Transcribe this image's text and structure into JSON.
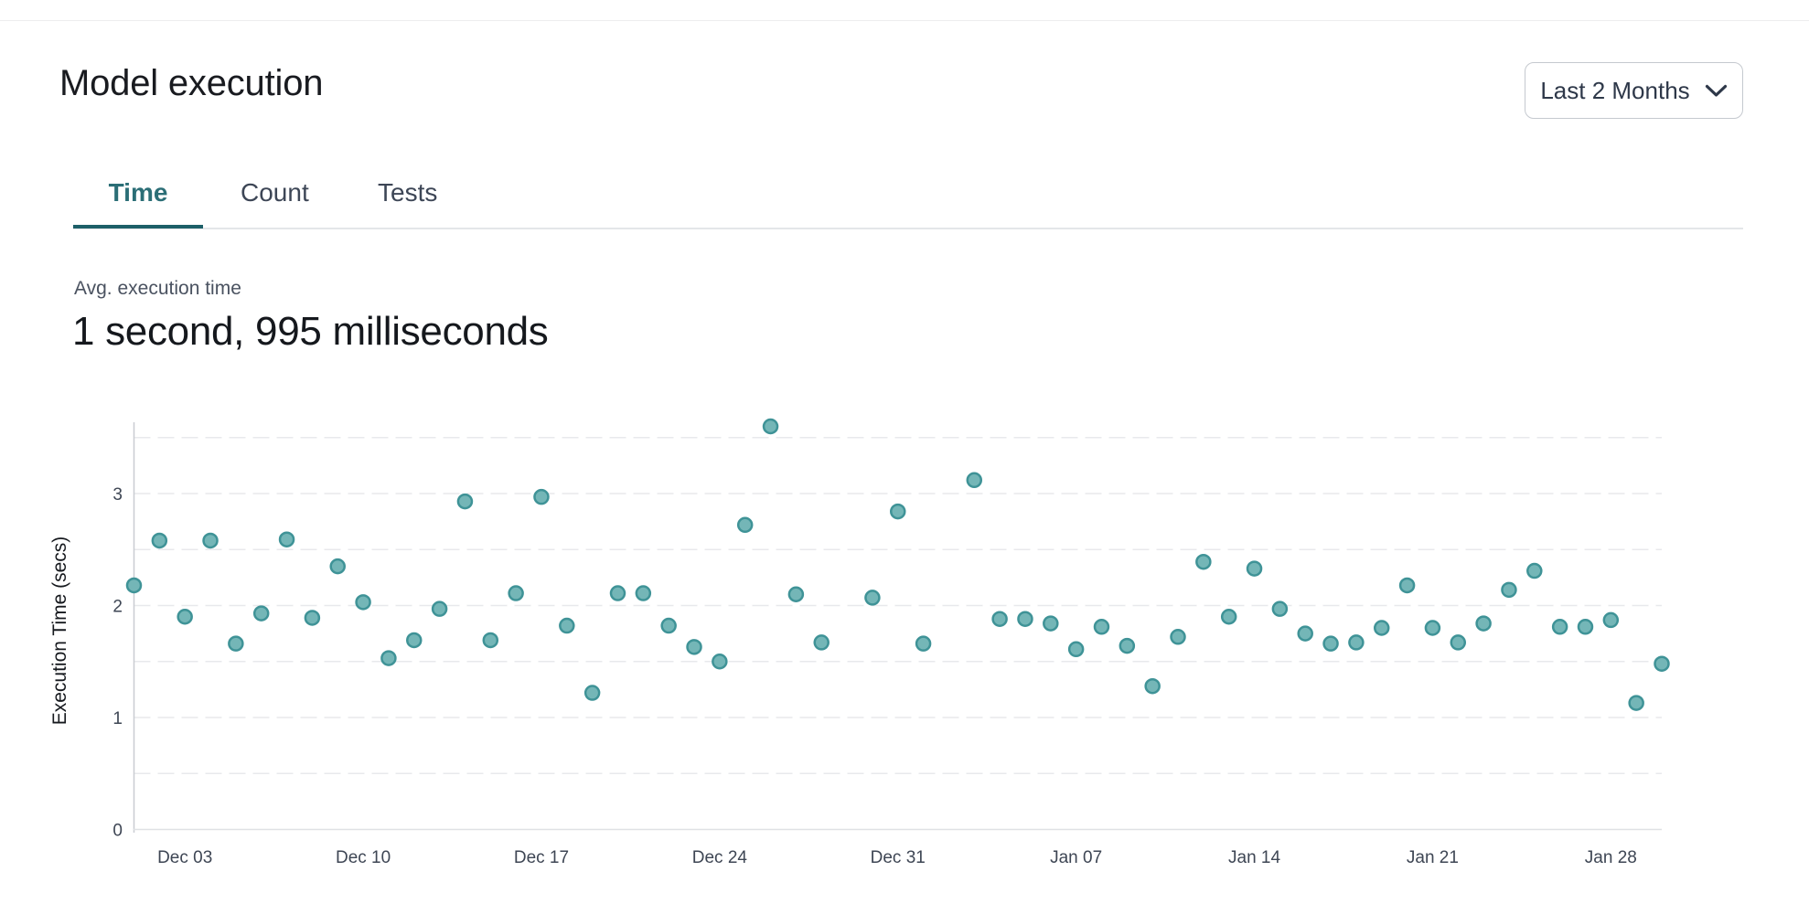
{
  "header": {
    "title": "Model execution",
    "range_selector": {
      "label": "Last 2 Months"
    }
  },
  "tabs": [
    {
      "label": "Time",
      "active": true
    },
    {
      "label": "Count",
      "active": false
    },
    {
      "label": "Tests",
      "active": false
    }
  ],
  "metric": {
    "label": "Avg. execution time",
    "value": "1 second, 995 milliseconds"
  },
  "colors": {
    "active_tab_text": "#2b6e76",
    "active_tab_underline": "#1d5f68",
    "inactive_tab_text": "#3d4656",
    "point_fill": "#74b6b7",
    "point_stroke": "#3f9397",
    "gridline": "#e8e9ec",
    "y_axis_line": "#c9ccd1",
    "x_axis_line": "#dfe1e5",
    "tick_label": "#3e4654",
    "axis_title": "#16191e"
  },
  "chart_data": {
    "type": "scatter",
    "title": "",
    "xlabel": "",
    "ylabel": "Execution Time (secs)",
    "ylim": [
      0,
      3.66
    ],
    "y_ticks": [
      0,
      1,
      2,
      3
    ],
    "gridline_step": 0.5,
    "grid": "dashed horizontal lines every 0.5 sec",
    "legend": "none",
    "x_ticks": [
      "Dec 03",
      "Dec 10",
      "Dec 17",
      "Dec 24",
      "Dec 31",
      "Jan 07",
      "Jan 14",
      "Jan 21",
      "Jan 28"
    ],
    "points": [
      {
        "date": "Dec 01",
        "value": 2.18
      },
      {
        "date": "Dec 02",
        "value": 2.58
      },
      {
        "date": "Dec 03",
        "value": 1.9
      },
      {
        "date": "Dec 04",
        "value": 2.58
      },
      {
        "date": "Dec 05",
        "value": 1.66
      },
      {
        "date": "Dec 06",
        "value": 1.93
      },
      {
        "date": "Dec 07",
        "value": 2.59
      },
      {
        "date": "Dec 08",
        "value": 1.89
      },
      {
        "date": "Dec 09",
        "value": 2.35
      },
      {
        "date": "Dec 10",
        "value": 2.03
      },
      {
        "date": "Dec 11",
        "value": 1.53
      },
      {
        "date": "Dec 12",
        "value": 1.69
      },
      {
        "date": "Dec 13",
        "value": 1.97
      },
      {
        "date": "Dec 14",
        "value": 2.93
      },
      {
        "date": "Dec 15",
        "value": 1.69
      },
      {
        "date": "Dec 16",
        "value": 2.11
      },
      {
        "date": "Dec 17",
        "value": 2.97
      },
      {
        "date": "Dec 18",
        "value": 1.82
      },
      {
        "date": "Dec 19",
        "value": 1.22
      },
      {
        "date": "Dec 20",
        "value": 2.11
      },
      {
        "date": "Dec 21",
        "value": 2.11
      },
      {
        "date": "Dec 22",
        "value": 1.82
      },
      {
        "date": "Dec 23",
        "value": 1.63
      },
      {
        "date": "Dec 24",
        "value": 1.5
      },
      {
        "date": "Dec 25",
        "value": 2.72
      },
      {
        "date": "Dec 26",
        "value": 3.6
      },
      {
        "date": "Dec 27",
        "value": 2.1
      },
      {
        "date": "Dec 28",
        "value": 1.67
      },
      {
        "date": "Dec 30",
        "value": 2.07
      },
      {
        "date": "Dec 31",
        "value": 2.84
      },
      {
        "date": "Jan 01",
        "value": 1.66
      },
      {
        "date": "Jan 03",
        "value": 3.12
      },
      {
        "date": "Jan 04",
        "value": 1.88
      },
      {
        "date": "Jan 05",
        "value": 1.88
      },
      {
        "date": "Jan 06",
        "value": 1.84
      },
      {
        "date": "Jan 07",
        "value": 1.61
      },
      {
        "date": "Jan 08",
        "value": 1.81
      },
      {
        "date": "Jan 09",
        "value": 1.64
      },
      {
        "date": "Jan 10",
        "value": 1.28
      },
      {
        "date": "Jan 11",
        "value": 1.72
      },
      {
        "date": "Jan 12",
        "value": 2.39
      },
      {
        "date": "Jan 13",
        "value": 1.9
      },
      {
        "date": "Jan 14",
        "value": 2.33
      },
      {
        "date": "Jan 15",
        "value": 1.97
      },
      {
        "date": "Jan 16",
        "value": 1.75
      },
      {
        "date": "Jan 17",
        "value": 1.66
      },
      {
        "date": "Jan 18",
        "value": 1.67
      },
      {
        "date": "Jan 19",
        "value": 1.8
      },
      {
        "date": "Jan 20",
        "value": 2.18
      },
      {
        "date": "Jan 21",
        "value": 1.8
      },
      {
        "date": "Jan 22",
        "value": 1.67
      },
      {
        "date": "Jan 23",
        "value": 1.84
      },
      {
        "date": "Jan 24",
        "value": 2.14
      },
      {
        "date": "Jan 25",
        "value": 2.31
      },
      {
        "date": "Jan 26",
        "value": 1.81
      },
      {
        "date": "Jan 27",
        "value": 1.81
      },
      {
        "date": "Jan 28",
        "value": 1.87
      },
      {
        "date": "Jan 29",
        "value": 1.13
      },
      {
        "date": "Jan 30",
        "value": 1.48
      }
    ]
  }
}
